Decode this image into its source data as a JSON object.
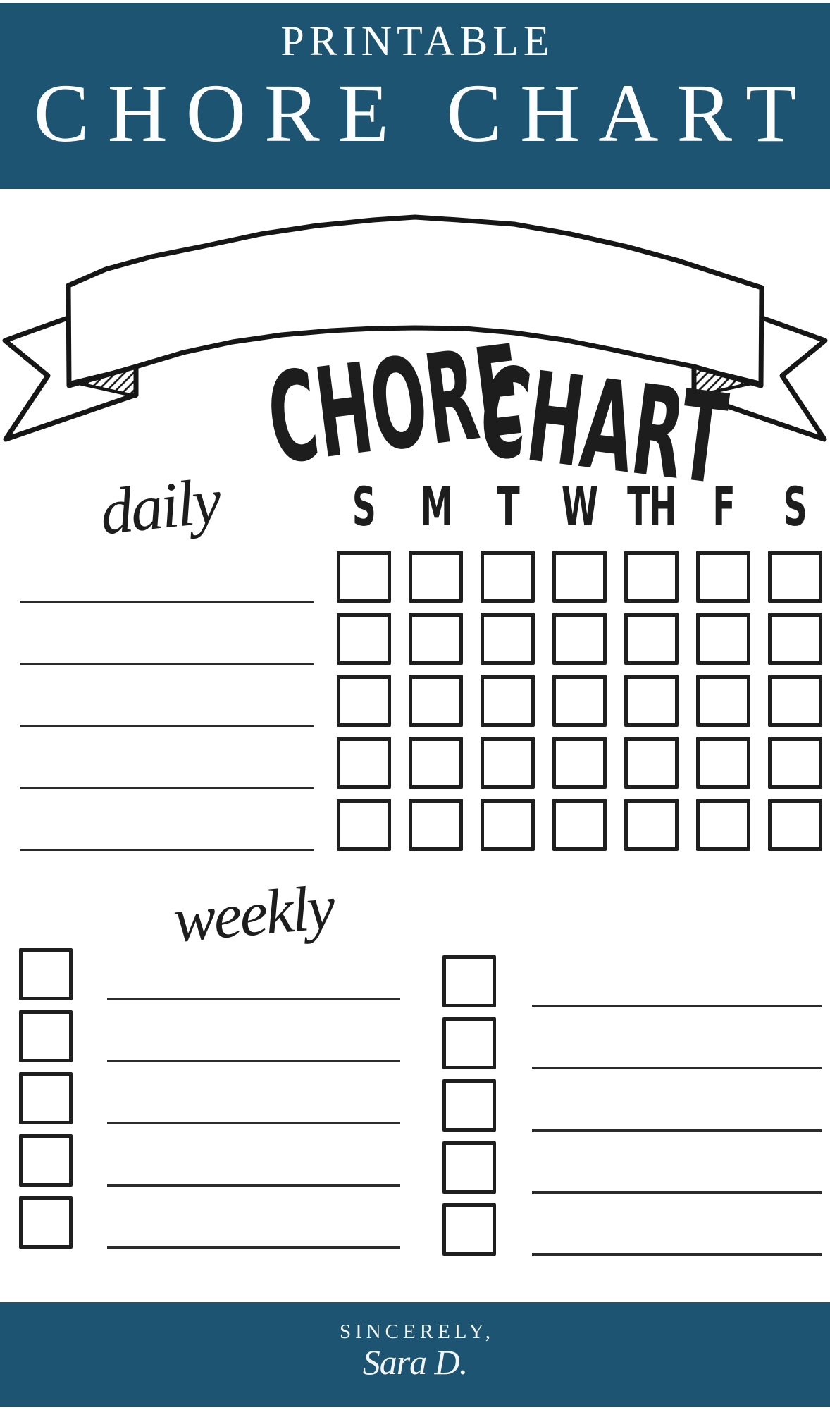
{
  "colors": {
    "banner_blue": "#1d5472",
    "ink": "#1f1f1f",
    "line_gray": "#2b2b2b",
    "paper": "#ffffff"
  },
  "top_banner": {
    "kicker": "PRINTABLE",
    "title": "CHORE CHART"
  },
  "ribbon": {
    "word1": "CHORE",
    "word2": "CHART"
  },
  "daily_section": {
    "label": "daily",
    "day_headers": [
      "S",
      "M",
      "T",
      "W",
      "TH",
      "F",
      "S"
    ],
    "task_line_count": 5,
    "checkbox_columns": 7,
    "checkbox_rows": 5
  },
  "weekly_section": {
    "label": "weekly",
    "columns": [
      {
        "side": "left",
        "row_count": 5
      },
      {
        "side": "right",
        "row_count": 5
      }
    ]
  },
  "footer": {
    "closing": "SINCERELY,",
    "signature": "Sara D."
  }
}
